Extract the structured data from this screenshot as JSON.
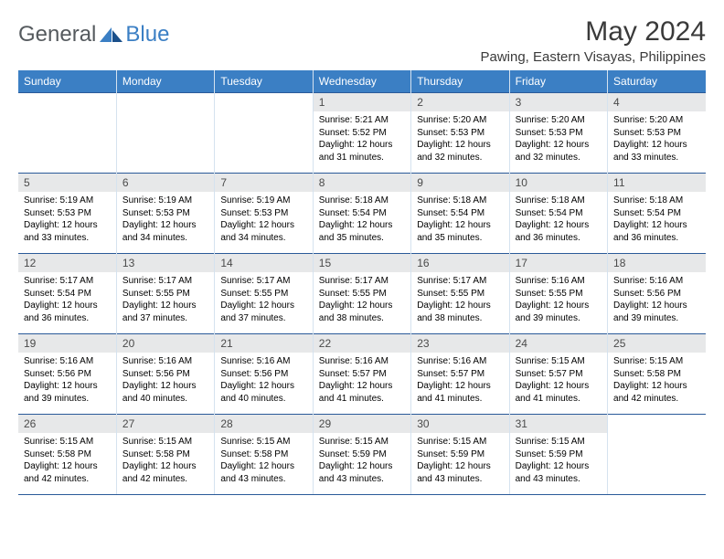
{
  "logo": {
    "text1": "General",
    "text2": "Blue"
  },
  "title": "May 2024",
  "location": "Pawing, Eastern Visayas, Philippines",
  "day_headers": [
    "Sunday",
    "Monday",
    "Tuesday",
    "Wednesday",
    "Thursday",
    "Friday",
    "Saturday"
  ],
  "colors": {
    "header_bg": "#3b7fc4",
    "header_text": "#ffffff",
    "daynum_bg": "#e7e8e9",
    "row_border": "#2a5a99",
    "col_border": "#d5e2ef",
    "page_bg": "#ffffff",
    "text": "#000000",
    "title_color": "#3a3a3a"
  },
  "weeks": [
    [
      {
        "n": "",
        "sr": "",
        "ss": "",
        "dl": ""
      },
      {
        "n": "",
        "sr": "",
        "ss": "",
        "dl": ""
      },
      {
        "n": "",
        "sr": "",
        "ss": "",
        "dl": ""
      },
      {
        "n": "1",
        "sr": "5:21 AM",
        "ss": "5:52 PM",
        "dl": "12 hours and 31 minutes."
      },
      {
        "n": "2",
        "sr": "5:20 AM",
        "ss": "5:53 PM",
        "dl": "12 hours and 32 minutes."
      },
      {
        "n": "3",
        "sr": "5:20 AM",
        "ss": "5:53 PM",
        "dl": "12 hours and 32 minutes."
      },
      {
        "n": "4",
        "sr": "5:20 AM",
        "ss": "5:53 PM",
        "dl": "12 hours and 33 minutes."
      }
    ],
    [
      {
        "n": "5",
        "sr": "5:19 AM",
        "ss": "5:53 PM",
        "dl": "12 hours and 33 minutes."
      },
      {
        "n": "6",
        "sr": "5:19 AM",
        "ss": "5:53 PM",
        "dl": "12 hours and 34 minutes."
      },
      {
        "n": "7",
        "sr": "5:19 AM",
        "ss": "5:53 PM",
        "dl": "12 hours and 34 minutes."
      },
      {
        "n": "8",
        "sr": "5:18 AM",
        "ss": "5:54 PM",
        "dl": "12 hours and 35 minutes."
      },
      {
        "n": "9",
        "sr": "5:18 AM",
        "ss": "5:54 PM",
        "dl": "12 hours and 35 minutes."
      },
      {
        "n": "10",
        "sr": "5:18 AM",
        "ss": "5:54 PM",
        "dl": "12 hours and 36 minutes."
      },
      {
        "n": "11",
        "sr": "5:18 AM",
        "ss": "5:54 PM",
        "dl": "12 hours and 36 minutes."
      }
    ],
    [
      {
        "n": "12",
        "sr": "5:17 AM",
        "ss": "5:54 PM",
        "dl": "12 hours and 36 minutes."
      },
      {
        "n": "13",
        "sr": "5:17 AM",
        "ss": "5:55 PM",
        "dl": "12 hours and 37 minutes."
      },
      {
        "n": "14",
        "sr": "5:17 AM",
        "ss": "5:55 PM",
        "dl": "12 hours and 37 minutes."
      },
      {
        "n": "15",
        "sr": "5:17 AM",
        "ss": "5:55 PM",
        "dl": "12 hours and 38 minutes."
      },
      {
        "n": "16",
        "sr": "5:17 AM",
        "ss": "5:55 PM",
        "dl": "12 hours and 38 minutes."
      },
      {
        "n": "17",
        "sr": "5:16 AM",
        "ss": "5:55 PM",
        "dl": "12 hours and 39 minutes."
      },
      {
        "n": "18",
        "sr": "5:16 AM",
        "ss": "5:56 PM",
        "dl": "12 hours and 39 minutes."
      }
    ],
    [
      {
        "n": "19",
        "sr": "5:16 AM",
        "ss": "5:56 PM",
        "dl": "12 hours and 39 minutes."
      },
      {
        "n": "20",
        "sr": "5:16 AM",
        "ss": "5:56 PM",
        "dl": "12 hours and 40 minutes."
      },
      {
        "n": "21",
        "sr": "5:16 AM",
        "ss": "5:56 PM",
        "dl": "12 hours and 40 minutes."
      },
      {
        "n": "22",
        "sr": "5:16 AM",
        "ss": "5:57 PM",
        "dl": "12 hours and 41 minutes."
      },
      {
        "n": "23",
        "sr": "5:16 AM",
        "ss": "5:57 PM",
        "dl": "12 hours and 41 minutes."
      },
      {
        "n": "24",
        "sr": "5:15 AM",
        "ss": "5:57 PM",
        "dl": "12 hours and 41 minutes."
      },
      {
        "n": "25",
        "sr": "5:15 AM",
        "ss": "5:58 PM",
        "dl": "12 hours and 42 minutes."
      }
    ],
    [
      {
        "n": "26",
        "sr": "5:15 AM",
        "ss": "5:58 PM",
        "dl": "12 hours and 42 minutes."
      },
      {
        "n": "27",
        "sr": "5:15 AM",
        "ss": "5:58 PM",
        "dl": "12 hours and 42 minutes."
      },
      {
        "n": "28",
        "sr": "5:15 AM",
        "ss": "5:58 PM",
        "dl": "12 hours and 43 minutes."
      },
      {
        "n": "29",
        "sr": "5:15 AM",
        "ss": "5:59 PM",
        "dl": "12 hours and 43 minutes."
      },
      {
        "n": "30",
        "sr": "5:15 AM",
        "ss": "5:59 PM",
        "dl": "12 hours and 43 minutes."
      },
      {
        "n": "31",
        "sr": "5:15 AM",
        "ss": "5:59 PM",
        "dl": "12 hours and 43 minutes."
      },
      {
        "n": "",
        "sr": "",
        "ss": "",
        "dl": ""
      }
    ]
  ],
  "prefix": {
    "sunrise": "Sunrise: ",
    "sunset": "Sunset: ",
    "daylight": "Daylight: "
  }
}
